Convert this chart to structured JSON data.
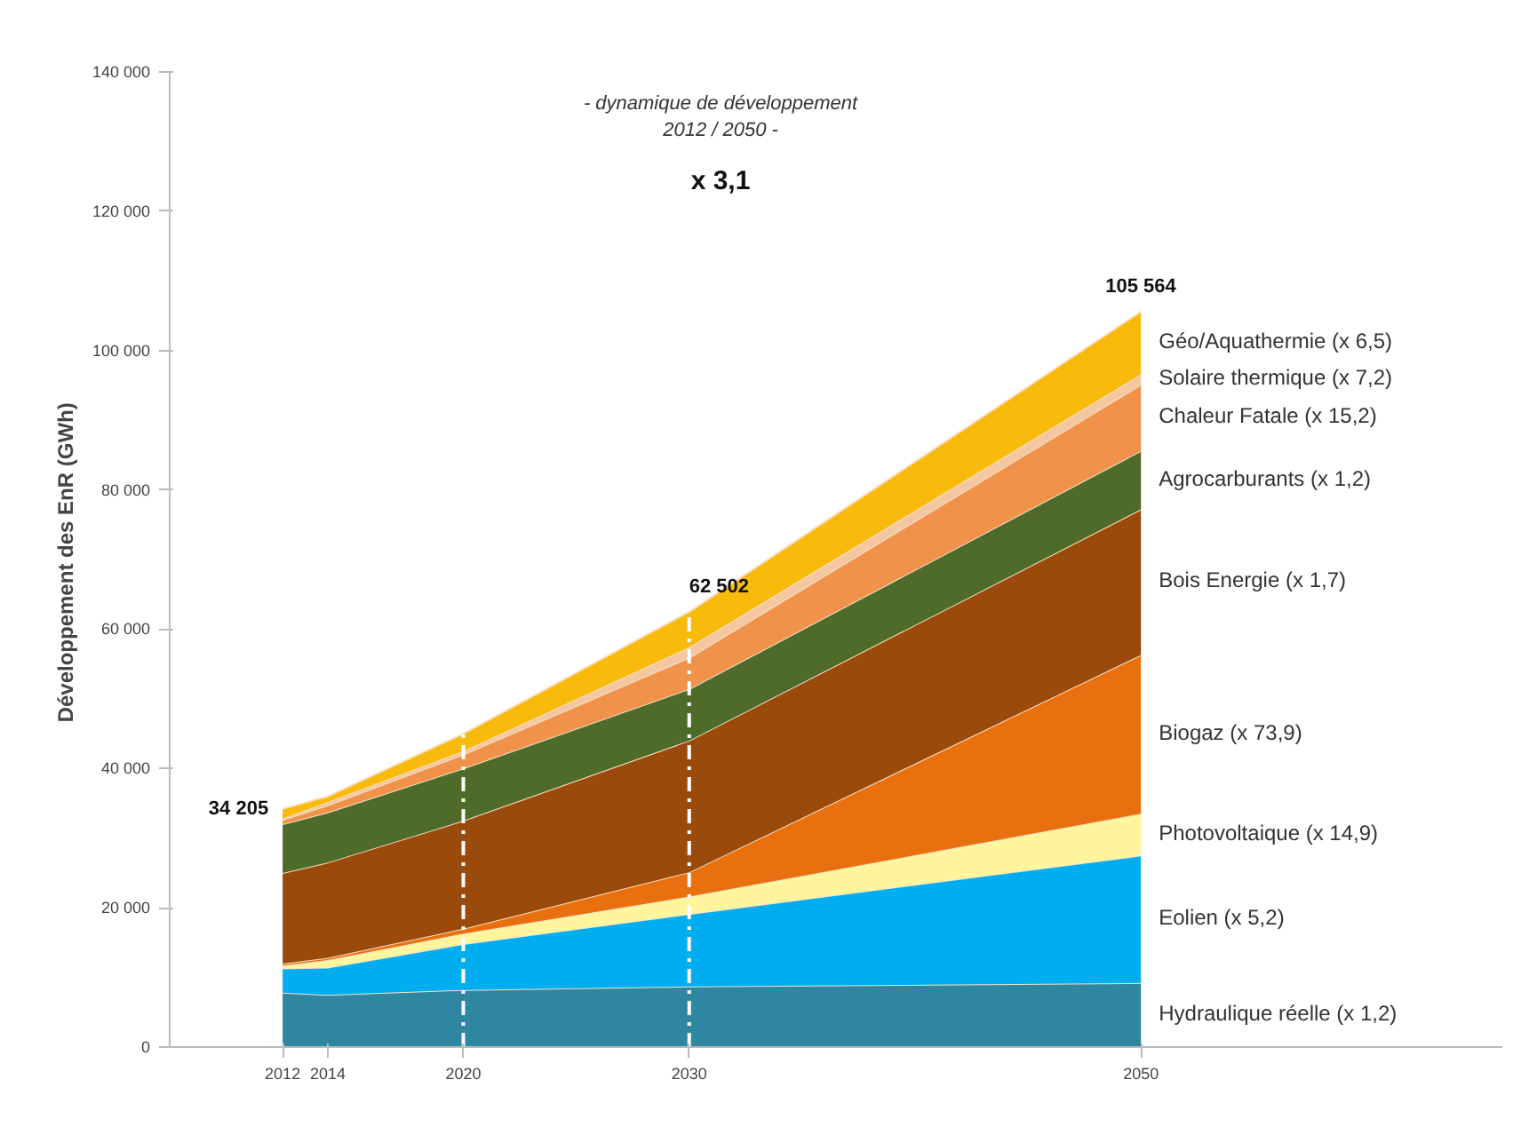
{
  "chart_data": {
    "type": "area",
    "stacked": true,
    "ylabel": "Développement des EnR  (GWh)",
    "x": [
      2012,
      2014,
      2020,
      2030,
      2050
    ],
    "xlim": [
      2007,
      2066
    ],
    "xticks": [
      2012,
      2014,
      2020,
      2030,
      2050
    ],
    "ylim": [
      0,
      140000
    ],
    "yticks": [
      {
        "value": 0,
        "label": "0"
      },
      {
        "value": 20000,
        "label": "20 000"
      },
      {
        "value": 40000,
        "label": "40 000"
      },
      {
        "value": 60000,
        "label": "60 000"
      },
      {
        "value": 80000,
        "label": "80 000"
      },
      {
        "value": 100000,
        "label": "100 000"
      },
      {
        "value": 120000,
        "label": "120 000"
      },
      {
        "value": 140000,
        "label": "140 000"
      }
    ],
    "grid": false,
    "legend": false,
    "series": [
      {
        "name": "Hydraulique réelle  (x 1,2)",
        "color": "#2e86a0",
        "values": [
          7800,
          7500,
          8200,
          8700,
          9200
        ]
      },
      {
        "name": "Eolien  (x 5,2)",
        "color": "#00aeef",
        "values": [
          3500,
          3900,
          6600,
          10400,
          18300
        ]
      },
      {
        "name": "Photovoltaique  (x 14,9)",
        "color": "#fff59d",
        "values": [
          400,
          1100,
          1500,
          2500,
          6000
        ]
      },
      {
        "name": "Biogaz  (x 73,9)",
        "color": "#e8700e",
        "values": [
          300,
          300,
          700,
          3500,
          22800
        ]
      },
      {
        "name": "Bois Energie  (x 1,7)",
        "color": "#9a4a0a",
        "values": [
          13000,
          13700,
          15500,
          18900,
          20900
        ]
      },
      {
        "name": "Agrocarburants  (x 1,2)",
        "color": "#4e6b2a",
        "values": [
          7000,
          7200,
          7500,
          7400,
          8400
        ]
      },
      {
        "name": "Chaleur Fatale  (x 15,2)",
        "color": "#f0924a",
        "values": [
          600,
          1000,
          2000,
          4500,
          9500
        ]
      },
      {
        "name": "Solaire thermique  (x 7,2)",
        "color": "#f4c7a0",
        "values": [
          200,
          500,
          500,
          1500,
          1500
        ]
      },
      {
        "name": "Géo/Aquathermie  (x 6,5)",
        "color": "#f8bb0c",
        "values": [
          1400,
          800,
          2500,
          5100,
          9000
        ]
      }
    ],
    "ref_lines": [
      {
        "axis": "x",
        "value": 2020,
        "color": "#ffffff",
        "line_style": "dashed"
      },
      {
        "axis": "x",
        "value": 2030,
        "color": "#ffffff",
        "line_style": "dashed"
      }
    ],
    "annotations": [
      "- dynamique de développement",
      "2012 / 2050 -",
      "x 3,1",
      {
        "text": "34 205",
        "x": 2012,
        "y": 34205
      },
      {
        "text": "62 502",
        "x": 2030,
        "y": 62502
      },
      {
        "text": "105 564",
        "x": 2050,
        "y": 105564
      }
    ]
  }
}
